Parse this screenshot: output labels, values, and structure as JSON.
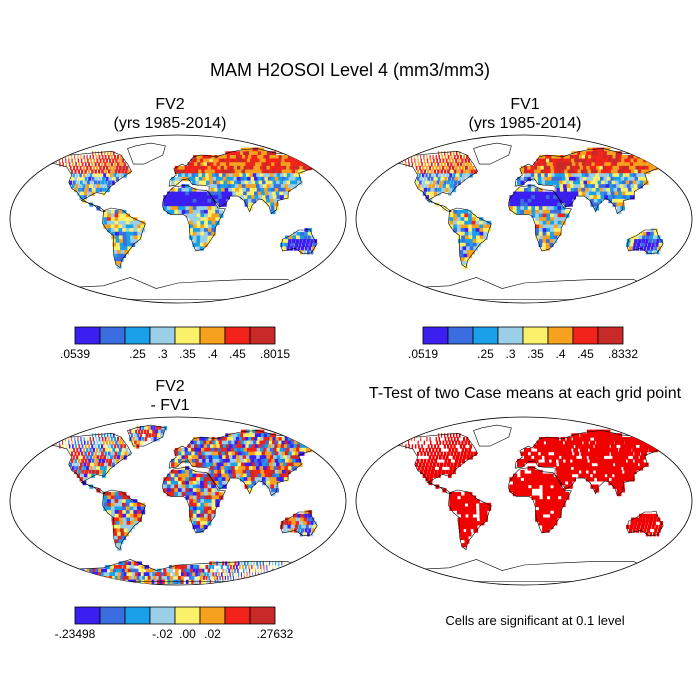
{
  "figure": {
    "title": "MAM H2OSOI Level 4 (mm3/mm3)",
    "panels": [
      {
        "id": "fv2",
        "title_line1": "FV2",
        "title_line2": "(yrs 1985-2014)",
        "kind": "field",
        "seed": 11
      },
      {
        "id": "fv1",
        "title_line1": "FV1",
        "title_line2": "(yrs 1985-2014)",
        "kind": "field",
        "seed": 23
      },
      {
        "id": "diff",
        "title_line1": "FV2",
        "title_line2": "- FV1",
        "kind": "diff",
        "seed": 37
      },
      {
        "id": "ttest",
        "title_line1": "T-Test of two Case means at each grid point",
        "title_line2": "",
        "kind": "ttest",
        "seed": 51
      }
    ],
    "colorbars": [
      {
        "id": "cb-fv2",
        "labels": [
          ".0539",
          ".25",
          ".3",
          ".35",
          ".4",
          ".45",
          ".8015"
        ]
      },
      {
        "id": "cb-fv1",
        "labels": [
          ".0519",
          ".25",
          ".3",
          ".35",
          ".4",
          ".45",
          ".8332"
        ]
      },
      {
        "id": "cb-diff",
        "labels": [
          "-.23498",
          "-.02",
          ".00",
          ".02",
          ".27632"
        ]
      }
    ],
    "note": "Cells are significant at 0.1 level"
  },
  "colors": {
    "field_scale": [
      "#3b1ff0",
      "#3a6ee0",
      "#1aa0e8",
      "#9bcfe8",
      "#fbf06a",
      "#f6a21e",
      "#f2231a",
      "#c82a2a"
    ],
    "diff_scale": [
      "#3b1ff0",
      "#3a6ee0",
      "#1aa0e8",
      "#9bcfe8",
      "#fbf06a",
      "#f6a21e",
      "#f2231a",
      "#c82a2a"
    ],
    "significant": "#f00000"
  }
}
